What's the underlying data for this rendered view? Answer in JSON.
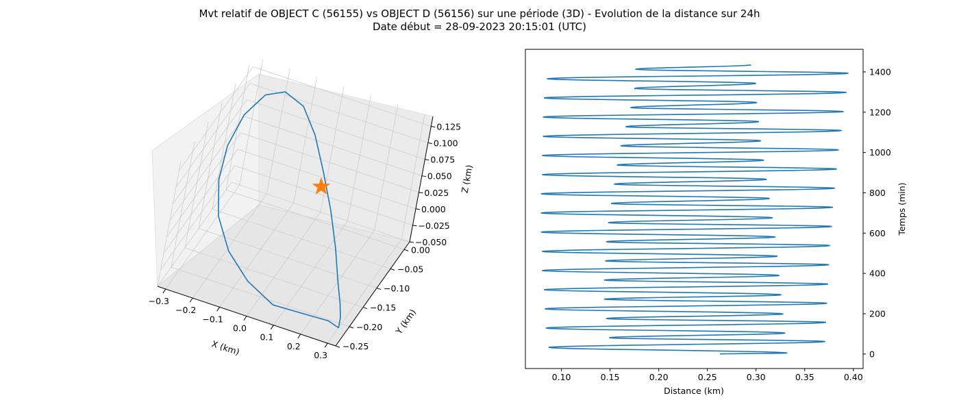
{
  "figure": {
    "title_line1": "Mvt relatif de OBJECT C (56155) vs OBJECT D (56156) sur une période (3D) - Evolution de la distance sur 24h",
    "title_line2": "Date début = 28-09-2023 20:15:01 (UTC)"
  },
  "colors": {
    "series": "#1f77b4",
    "marker": "#ff7f0e",
    "pane": "#f2f2f2",
    "grid": "#cccccc"
  },
  "chart_data": [
    {
      "type": "line",
      "projection": "3d",
      "xlabel": "X (km)",
      "ylabel": "Y (km)",
      "zlabel": "Z (km)",
      "xlim": [
        -0.33,
        0.33
      ],
      "ylim": [
        -0.25,
        0.02
      ],
      "zlim": [
        -0.05,
        0.14
      ],
      "xticks": [
        "−0.3",
        "−0.2",
        "−0.1",
        "0.0",
        "0.1",
        "0.2",
        "0.3"
      ],
      "yticks": [
        "0.00",
        "−0.05",
        "−0.10",
        "−0.15",
        "−0.20",
        "−0.25"
      ],
      "zticks": [
        "0.125",
        "0.100",
        "0.075",
        "0.050",
        "0.025",
        "0.000",
        "−0.025",
        "−0.050"
      ],
      "grid": true,
      "series": [
        {
          "marker": "line",
          "points": [
            [
              0.3,
              -0.21,
              -0.05
            ],
            [
              0.26,
              -0.21,
              -0.045
            ],
            [
              0.17,
              -0.22,
              -0.04
            ],
            [
              0.07,
              -0.23,
              -0.035
            ],
            [
              -0.04,
              -0.22,
              -0.02
            ],
            [
              -0.14,
              -0.2,
              0.0
            ],
            [
              -0.22,
              -0.17,
              0.025
            ],
            [
              -0.27,
              -0.13,
              0.05
            ],
            [
              -0.29,
              -0.09,
              0.075
            ],
            [
              -0.28,
              -0.05,
              0.1
            ],
            [
              -0.24,
              -0.02,
              0.118
            ],
            [
              -0.18,
              -0.01,
              0.125
            ],
            [
              -0.1,
              -0.02,
              0.12
            ],
            [
              -0.02,
              -0.05,
              0.105
            ],
            [
              0.06,
              -0.09,
              0.085
            ],
            [
              0.14,
              -0.13,
              0.06
            ],
            [
              0.21,
              -0.17,
              0.035
            ],
            [
              0.26,
              -0.2,
              0.01
            ],
            [
              0.29,
              -0.21,
              -0.015
            ],
            [
              0.3,
              -0.21,
              -0.035
            ],
            [
              0.3,
              -0.21,
              -0.05
            ]
          ]
        },
        {
          "marker": "star",
          "points": [
            [
              0.0,
              0.0,
              0.0
            ]
          ]
        }
      ]
    },
    {
      "type": "line",
      "xlabel": "Distance (km)",
      "ylabel": "Temps (min)",
      "xlim": [
        0.063,
        0.41
      ],
      "ylim": [
        -72,
        1512
      ],
      "xticks": [
        0.1,
        0.15,
        0.2,
        0.25,
        0.3,
        0.35,
        0.4
      ],
      "yticks": [
        0,
        200,
        400,
        600,
        800,
        1000,
        1200,
        1400
      ],
      "x_tick_labels": [
        "0.10",
        "0.15",
        "0.20",
        "0.25",
        "0.30",
        "0.35",
        "0.40"
      ],
      "y_tick_labels": [
        "0",
        "200",
        "400",
        "600",
        "800",
        "1000",
        "1200",
        "1400"
      ],
      "y_axis_side": "right",
      "grid": false,
      "series": [
        {
          "extrema": [
            [
              0.263,
              0
            ],
            [
              0.332,
              5
            ],
            [
              0.087,
              33
            ],
            [
              0.371,
              62
            ],
            [
              0.149,
              81
            ],
            [
              0.33,
              104
            ],
            [
              0.084,
              129
            ],
            [
              0.372,
              157
            ],
            [
              0.146,
              176
            ],
            [
              0.328,
              199
            ],
            [
              0.083,
              224
            ],
            [
              0.373,
              252
            ],
            [
              0.144,
              272
            ],
            [
              0.326,
              294
            ],
            [
              0.082,
              319
            ],
            [
              0.374,
              347
            ],
            [
              0.144,
              367
            ],
            [
              0.324,
              390
            ],
            [
              0.08,
              414
            ],
            [
              0.375,
              443
            ],
            [
              0.145,
              462
            ],
            [
              0.322,
              485
            ],
            [
              0.08,
              509
            ],
            [
              0.376,
              538
            ],
            [
              0.146,
              557
            ],
            [
              0.32,
              581
            ],
            [
              0.079,
              605
            ],
            [
              0.378,
              633
            ],
            [
              0.148,
              652
            ],
            [
              0.317,
              676
            ],
            [
              0.079,
              700
            ],
            [
              0.379,
              728
            ],
            [
              0.151,
              747
            ],
            [
              0.314,
              772
            ],
            [
              0.079,
              795
            ],
            [
              0.381,
              823
            ],
            [
              0.154,
              843
            ],
            [
              0.311,
              867
            ],
            [
              0.08,
              890
            ],
            [
              0.383,
              918
            ],
            [
              0.157,
              938
            ],
            [
              0.308,
              962
            ],
            [
              0.08,
              985
            ],
            [
              0.385,
              1013
            ],
            [
              0.161,
              1033
            ],
            [
              0.305,
              1058
            ],
            [
              0.081,
              1080
            ],
            [
              0.388,
              1109
            ],
            [
              0.166,
              1128
            ],
            [
              0.303,
              1153
            ],
            [
              0.081,
              1176
            ],
            [
              0.39,
              1203
            ],
            [
              0.171,
              1223
            ],
            [
              0.301,
              1248
            ],
            [
              0.082,
              1271
            ],
            [
              0.393,
              1298
            ],
            [
              0.175,
              1318
            ],
            [
              0.3,
              1343
            ],
            [
              0.085,
              1366
            ],
            [
              0.395,
              1393
            ],
            [
              0.176,
              1413
            ],
            [
              0.295,
              1435
            ]
          ]
        }
      ]
    }
  ]
}
